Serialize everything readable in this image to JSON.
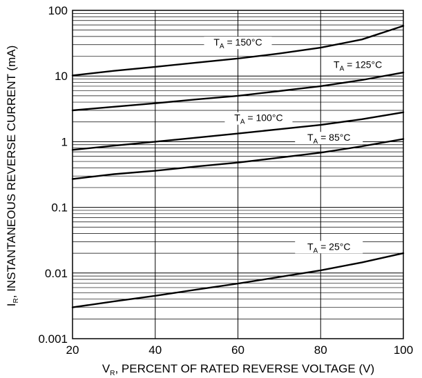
{
  "chart_data": {
    "type": "line",
    "title": "",
    "xlabel": {
      "main": "V",
      "sub": "R",
      "rest": ", PERCENT OF RATED REVERSE VOLTAGE (V)"
    },
    "ylabel": {
      "main": "I",
      "sub": "R",
      "rest": ", INSTANTANEOUS REVERSE CURRENT (mA)"
    },
    "x_scale": "linear",
    "y_scale": "log",
    "xlim": [
      20,
      100
    ],
    "ylim": [
      0.001,
      100
    ],
    "x_ticks": [
      "20",
      "40",
      "60",
      "80",
      "100"
    ],
    "y_ticks": [
      "100",
      "10",
      "1",
      "0.1",
      "0.01",
      "0.001"
    ],
    "grid": true,
    "legend": "none",
    "line_color": "#000000",
    "series": [
      {
        "name": {
          "main": "T",
          "sub": "A",
          "rest": " = 150°C"
        },
        "x": [
          20,
          30,
          40,
          50,
          60,
          70,
          80,
          90,
          100
        ],
        "y": [
          10.2,
          12.0,
          13.8,
          16.0,
          18.5,
          22.0,
          27.0,
          36.0,
          58.0
        ]
      },
      {
        "name": {
          "main": "T",
          "sub": "A",
          "rest": " = 125°C"
        },
        "x": [
          20,
          30,
          40,
          50,
          60,
          70,
          80,
          90,
          100
        ],
        "y": [
          3.0,
          3.4,
          3.85,
          4.4,
          5.0,
          5.9,
          7.0,
          8.7,
          11.3
        ]
      },
      {
        "name": {
          "main": "T",
          "sub": "A",
          "rest": " = 100°C"
        },
        "x": [
          20,
          30,
          40,
          50,
          60,
          70,
          80,
          90,
          100
        ],
        "y": [
          0.75,
          0.87,
          1.0,
          1.15,
          1.33,
          1.55,
          1.8,
          2.2,
          2.8
        ]
      },
      {
        "name": {
          "main": "T",
          "sub": "A",
          "rest": " = 85°C"
        },
        "x": [
          20,
          30,
          40,
          50,
          60,
          70,
          80,
          90,
          100
        ],
        "y": [
          0.27,
          0.32,
          0.36,
          0.42,
          0.48,
          0.57,
          0.68,
          0.85,
          1.1
        ]
      },
      {
        "name": {
          "main": "T",
          "sub": "A",
          "rest": " = 25°C"
        },
        "x": [
          20,
          30,
          40,
          50,
          60,
          70,
          80,
          90,
          100
        ],
        "y": [
          0.003,
          0.0037,
          0.0045,
          0.0056,
          0.0069,
          0.0087,
          0.011,
          0.0145,
          0.02
        ]
      }
    ]
  }
}
